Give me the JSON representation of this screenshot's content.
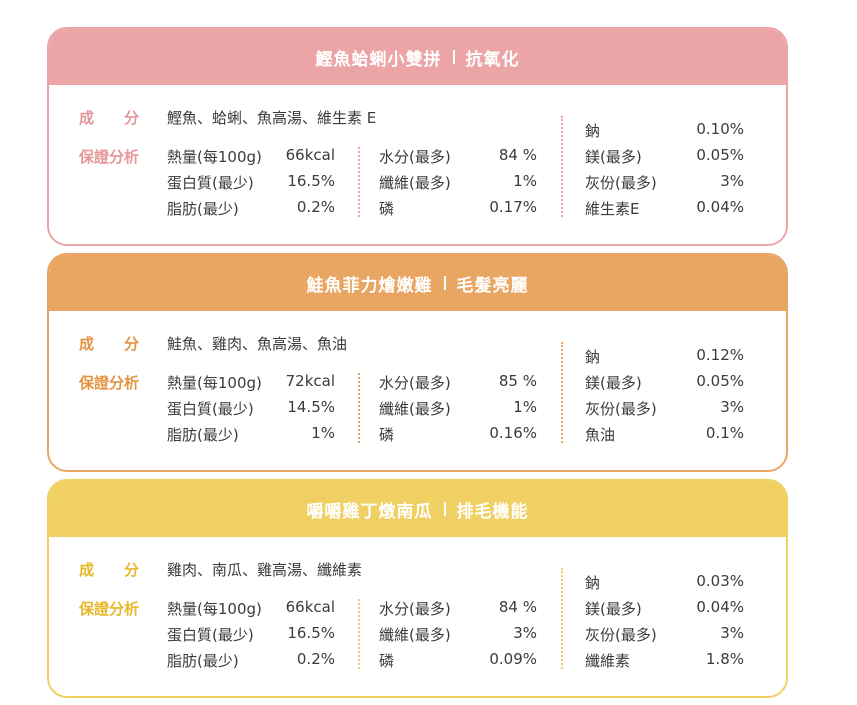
{
  "labels": {
    "ingredients": "成　　分",
    "guarantee": "保證分析"
  },
  "cards": [
    {
      "title": "鰹魚蛤蜊小雙拼",
      "subtitle": "抗氧化",
      "ingredients": "鰹魚、蛤蜊、魚高湯、維生素 E",
      "col1": [
        {
          "name": "熱量(每100g)",
          "value": "66kcal"
        },
        {
          "name": "蛋白質(最少)",
          "value": "16.5%"
        },
        {
          "name": "脂肪(最少)",
          "value": "0.2%"
        }
      ],
      "col2": [
        {
          "name": "水分(最多)",
          "value": "84 %"
        },
        {
          "name": "纖維(最多)",
          "value": "1%"
        },
        {
          "name": "磷",
          "value": "0.17%"
        }
      ],
      "col3": [
        {
          "name": "鈉",
          "value": "0.10%"
        },
        {
          "name": "鎂(最多)",
          "value": "0.05%"
        },
        {
          "name": "灰份(最多)",
          "value": "3%"
        },
        {
          "name": "維生素E",
          "value": "0.04%"
        }
      ]
    },
    {
      "title": "鮭魚菲力燴嫩雞",
      "subtitle": "毛髮亮麗",
      "ingredients": "鮭魚、雞肉、魚高湯、魚油",
      "col1": [
        {
          "name": "熱量(每100g)",
          "value": "72kcal"
        },
        {
          "name": "蛋白質(最少)",
          "value": "14.5%"
        },
        {
          "name": "脂肪(最少)",
          "value": "1%"
        }
      ],
      "col2": [
        {
          "name": "水分(最多)",
          "value": "85 %"
        },
        {
          "name": "纖維(最多)",
          "value": "1%"
        },
        {
          "name": "磷",
          "value": "0.16%"
        }
      ],
      "col3": [
        {
          "name": "鈉",
          "value": "0.12%"
        },
        {
          "name": "鎂(最多)",
          "value": "0.05%"
        },
        {
          "name": "灰份(最多)",
          "value": "3%"
        },
        {
          "name": "魚油",
          "value": "0.1%"
        }
      ]
    },
    {
      "title": "嚼嚼雞丁燉南瓜",
      "subtitle": "排毛機能",
      "ingredients": "雞肉、南瓜、雞高湯、纖維素",
      "col1": [
        {
          "name": "熱量(每100g)",
          "value": "66kcal"
        },
        {
          "name": "蛋白質(最少)",
          "value": "16.5%"
        },
        {
          "name": "脂肪(最少)",
          "value": "0.2%"
        }
      ],
      "col2": [
        {
          "name": "水分(最多)",
          "value": "84 %"
        },
        {
          "name": "纖維(最多)",
          "value": "3%"
        },
        {
          "name": "磷",
          "value": "0.09%"
        }
      ],
      "col3": [
        {
          "name": "鈉",
          "value": "0.03%"
        },
        {
          "name": "鎂(最多)",
          "value": "0.04%"
        },
        {
          "name": "灰份(最多)",
          "value": "3%"
        },
        {
          "name": "纖維素",
          "value": "1.8%"
        }
      ]
    }
  ]
}
